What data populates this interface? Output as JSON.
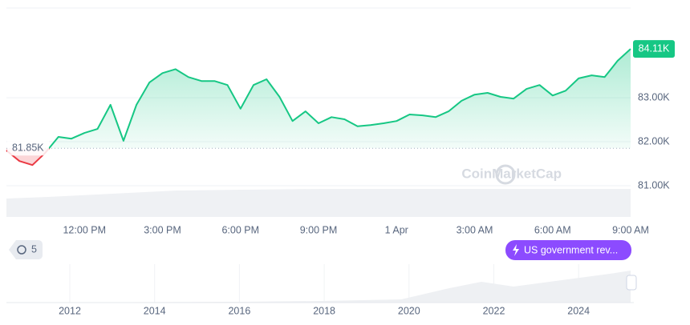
{
  "chart_data": {
    "type": "line",
    "categories": [
      null,
      null,
      null,
      null,
      null,
      null,
      "12:00 PM",
      null,
      null,
      null,
      null,
      null,
      "3:00 PM",
      null,
      null,
      null,
      null,
      null,
      "6:00 PM",
      null,
      null,
      null,
      null,
      null,
      "9:00 PM",
      null,
      null,
      null,
      null,
      null,
      "1 Apr",
      null,
      null,
      null,
      null,
      null,
      "3:00 AM",
      null,
      null,
      null,
      null,
      null,
      "6:00 AM",
      null,
      null,
      null,
      null,
      null,
      "9:00 AM"
    ],
    "series": [
      {
        "color": "#16c784",
        "values": [
          81800,
          81560,
          81470,
          81750,
          82110,
          82070,
          82200,
          82290,
          82840,
          82020,
          82840,
          83350,
          83560,
          83650,
          83470,
          83380,
          83380,
          83290,
          82750,
          83290,
          83420,
          83020,
          82470,
          82690,
          82420,
          82560,
          82510,
          82350,
          82380,
          82420,
          82470,
          82620,
          82600,
          82560,
          82690,
          82930,
          83070,
          83110,
          83020,
          82980,
          83200,
          83290,
          83050,
          83160,
          83440,
          83510,
          83470,
          83840,
          84110
        ],
        "value_labels": [
          null,
          null,
          null,
          null,
          null,
          null,
          null,
          null,
          null,
          null,
          null,
          null,
          null,
          null,
          null,
          null,
          null,
          null,
          null,
          null,
          null,
          null,
          null,
          null,
          null,
          null,
          null,
          null,
          null,
          null,
          null,
          null,
          null,
          null,
          null,
          null,
          null,
          null,
          null,
          null,
          null,
          null,
          null,
          null,
          null,
          null,
          null,
          null,
          "84.11K"
        ]
      }
    ],
    "down_color": "#ea3943",
    "baseline": {
      "value": 81850,
      "label": "81.85K"
    },
    "ylim": [
      80290,
      85040
    ],
    "yticks": [
      {
        "value": 81000,
        "label": "81.00K"
      },
      {
        "value": 82000,
        "label": "82.00K"
      },
      {
        "value": 83000,
        "label": "83.00K"
      }
    ],
    "grid": true
  },
  "watermark": "CoinMarketCap",
  "history_count": 5,
  "event": "US government rev...",
  "navigator_years": [
    "2012",
    "2014",
    "2016",
    "2018",
    "2020",
    "2022",
    "2024"
  ]
}
